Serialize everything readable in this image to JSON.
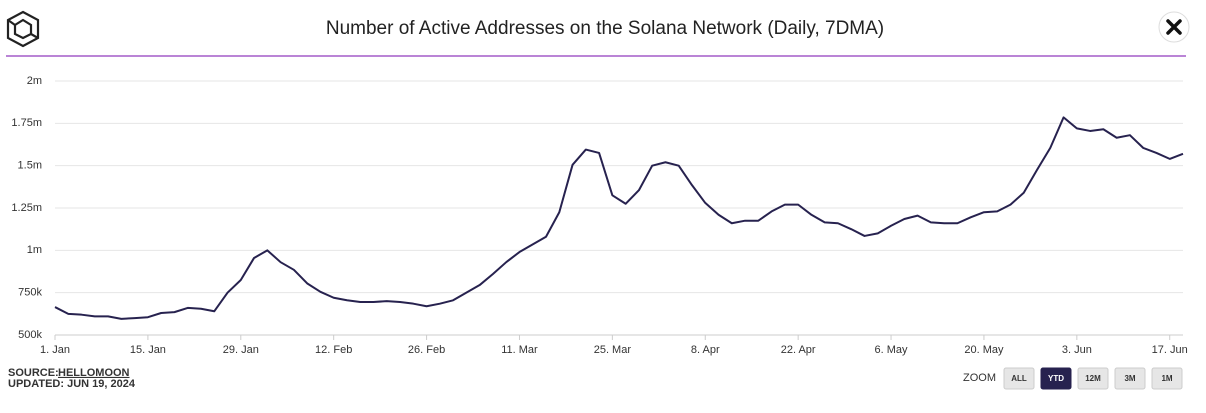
{
  "chart_data": {
    "type": "line",
    "title": "Number of Active Addresses on the Solana Network (Daily, 7DMA)",
    "x": [
      0,
      2,
      4,
      6,
      8,
      10,
      12,
      14,
      16,
      18,
      20,
      22,
      24,
      26,
      28,
      30,
      32,
      34,
      36,
      38,
      40,
      42,
      44,
      46,
      48,
      50,
      52,
      54,
      56,
      58,
      60,
      62,
      64,
      66,
      68,
      70,
      72,
      74,
      76,
      78,
      80,
      82,
      84,
      86,
      88,
      90,
      92,
      94,
      96,
      98,
      100,
      102,
      104,
      106,
      108,
      110,
      112,
      114,
      116,
      118,
      120,
      122,
      124,
      126,
      128,
      130,
      132,
      134,
      136,
      138,
      140,
      142,
      144,
      146,
      148,
      150,
      152,
      154,
      156,
      158,
      160,
      162,
      164,
      166,
      168,
      170
    ],
    "series": [
      {
        "name": "Active Addresses",
        "color": "#27224f",
        "values": [
          665000,
          625000,
          620000,
          610000,
          610000,
          595000,
          600000,
          605000,
          630000,
          635000,
          660000,
          655000,
          640000,
          750000,
          825000,
          955000,
          1000000,
          930000,
          885000,
          805000,
          755000,
          720000,
          705000,
          695000,
          695000,
          700000,
          695000,
          685000,
          670000,
          685000,
          705000,
          750000,
          795000,
          860000,
          930000,
          990000,
          1035000,
          1080000,
          1225000,
          1505000,
          1595000,
          1575000,
          1325000,
          1275000,
          1355000,
          1500000,
          1520000,
          1500000,
          1385000,
          1280000,
          1210000,
          1160000,
          1175000,
          1175000,
          1230000,
          1270000,
          1270000,
          1210000,
          1165000,
          1160000,
          1125000,
          1085000,
          1100000,
          1145000,
          1185000,
          1205000,
          1165000,
          1160000,
          1160000,
          1195000,
          1225000,
          1230000,
          1270000,
          1340000,
          1475000,
          1605000,
          1785000,
          1720000,
          1705000,
          1715000,
          1665000,
          1680000,
          1605000,
          1575000,
          1540000,
          1570000
        ]
      }
    ],
    "xlim": [
      0,
      170
    ],
    "xticks": [
      {
        "value": 0,
        "label": "1. Jan"
      },
      {
        "value": 14,
        "label": "15. Jan"
      },
      {
        "value": 28,
        "label": "29. Jan"
      },
      {
        "value": 42,
        "label": "12. Feb"
      },
      {
        "value": 56,
        "label": "26. Feb"
      },
      {
        "value": 70,
        "label": "11. Mar"
      },
      {
        "value": 84,
        "label": "25. Mar"
      },
      {
        "value": 98,
        "label": "8. Apr"
      },
      {
        "value": 112,
        "label": "22. Apr"
      },
      {
        "value": 126,
        "label": "6. May"
      },
      {
        "value": 140,
        "label": "20. May"
      },
      {
        "value": 154,
        "label": "3. Jun"
      },
      {
        "value": 168,
        "label": "17. Jun"
      }
    ],
    "ylim": [
      500000,
      2000000
    ],
    "yticks": [
      {
        "value": 500000,
        "label": "500k"
      },
      {
        "value": 750000,
        "label": "750k"
      },
      {
        "value": 1000000,
        "label": "1m"
      },
      {
        "value": 1250000,
        "label": "1.25m"
      },
      {
        "value": 1500000,
        "label": "1.5m"
      },
      {
        "value": 1750000,
        "label": "1.75m"
      },
      {
        "value": 2000000,
        "label": "2m"
      }
    ],
    "grid": true
  },
  "source": {
    "label": "SOURCE:",
    "name": "HELLOMOON",
    "updated": "UPDATED: JUN 19, 2024"
  },
  "zoom": {
    "label": "ZOOM",
    "buttons": [
      "ALL",
      "YTD",
      "12M",
      "3M",
      "1M"
    ],
    "selected": "YTD"
  }
}
